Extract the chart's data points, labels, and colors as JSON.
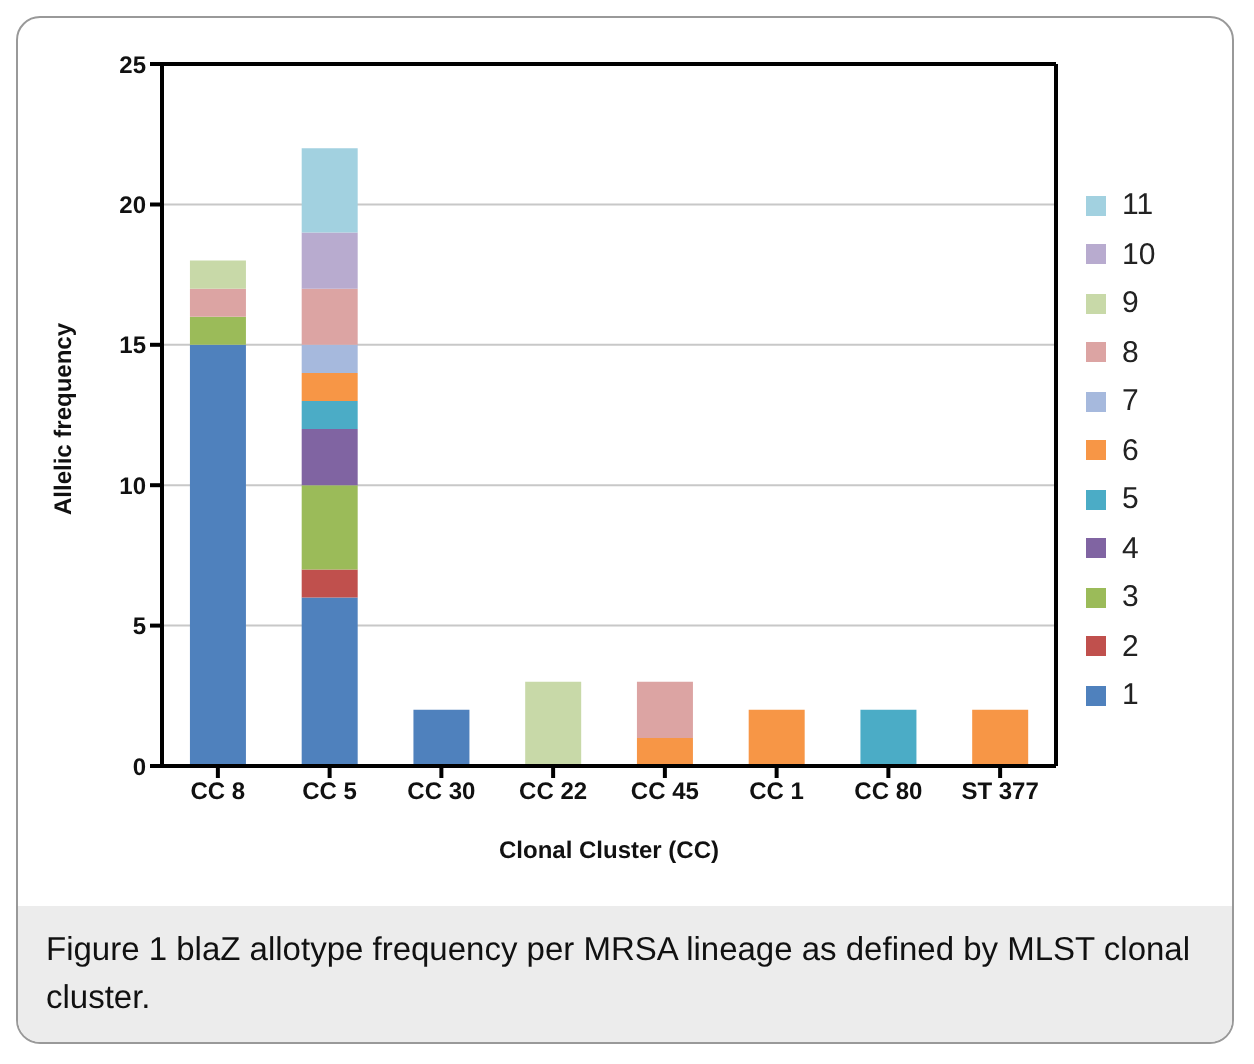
{
  "chart_data": {
    "type": "bar",
    "stacked": true,
    "xlabel": "Clonal Cluster (CC)",
    "ylabel": "Allelic frequency",
    "categories": [
      "CC 8",
      "CC 5",
      "CC 30",
      "CC 22",
      "CC 45",
      "CC 1",
      "CC 80",
      "ST 377"
    ],
    "series": [
      {
        "name": "1",
        "color": "#4f81bd",
        "values": [
          15,
          6,
          2,
          null,
          null,
          null,
          null,
          null
        ]
      },
      {
        "name": "2",
        "color": "#c0504d",
        "values": [
          null,
          1,
          null,
          null,
          null,
          null,
          null,
          null
        ]
      },
      {
        "name": "3",
        "color": "#9bbb59",
        "values": [
          1,
          3,
          null,
          null,
          null,
          null,
          null,
          null
        ]
      },
      {
        "name": "4",
        "color": "#8064a2",
        "values": [
          null,
          2,
          null,
          null,
          null,
          null,
          null,
          null
        ]
      },
      {
        "name": "5",
        "color": "#4bacc6",
        "values": [
          null,
          1,
          null,
          null,
          null,
          null,
          2,
          null
        ]
      },
      {
        "name": "6",
        "color": "#f79646",
        "values": [
          null,
          1,
          null,
          null,
          1,
          2,
          null,
          2
        ]
      },
      {
        "name": "7",
        "color": "#a6b9dd",
        "values": [
          null,
          1,
          null,
          null,
          null,
          null,
          null,
          null
        ]
      },
      {
        "name": "8",
        "color": "#dca4a3",
        "values": [
          1,
          2,
          null,
          null,
          2,
          null,
          null,
          null
        ]
      },
      {
        "name": "9",
        "color": "#c8d9a8",
        "values": [
          1,
          null,
          null,
          3,
          null,
          null,
          null,
          null
        ]
      },
      {
        "name": "10",
        "color": "#b8abcf",
        "values": [
          null,
          2,
          null,
          null,
          null,
          null,
          null,
          null
        ]
      },
      {
        "name": "11",
        "color": "#a2d1e0",
        "values": [
          null,
          3,
          null,
          null,
          null,
          null,
          null,
          null
        ]
      }
    ],
    "ylim": [
      0,
      25
    ],
    "yticks": [
      0,
      5,
      10,
      15,
      20,
      25
    ],
    "grid": "y",
    "legend": "right",
    "annotations": [
      "Figure 1 blaZ allotype frequency per MRSA lineage as defined by MLST clonal cluster."
    ]
  }
}
